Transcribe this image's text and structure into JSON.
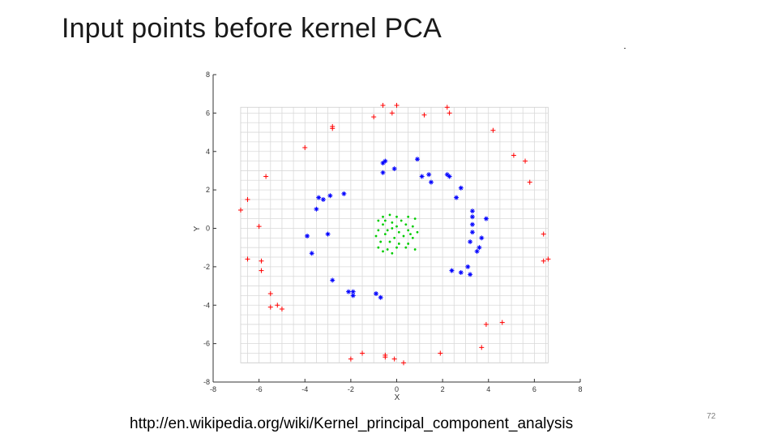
{
  "slide": {
    "title": "Input points before kernel PCA",
    "url": "http://en.wikipedia.org/wiki/Kernel_principal_component_analysis",
    "page_number": "72"
  },
  "chart_data": {
    "type": "scatter",
    "xlabel": "X",
    "ylabel": "Y",
    "xlim": [
      -8,
      8
    ],
    "ylim": [
      -8,
      8
    ],
    "xticks": [
      -8,
      -6,
      -4,
      -2,
      0,
      2,
      4,
      6,
      8
    ],
    "yticks": [
      -8,
      -6,
      -4,
      -2,
      0,
      2,
      4,
      6,
      8
    ],
    "xtick_labels": [
      "-8",
      "-6",
      "-4",
      "-2",
      "0",
      "2",
      "4",
      "6",
      "8"
    ],
    "ytick_labels": [
      "-8",
      "-6",
      "-4",
      "-2",
      "0",
      "2",
      "4",
      "6",
      "8"
    ],
    "grid": true,
    "grid_range": {
      "x": [
        -6.8,
        6.6
      ],
      "y": [
        -7.0,
        6.3
      ]
    },
    "series": [
      {
        "color": "#ff0000",
        "marker": "plus",
        "points": [
          [
            -0.6,
            6.4
          ],
          [
            0.0,
            6.4
          ],
          [
            -0.2,
            6.0
          ],
          [
            1.2,
            5.9
          ],
          [
            2.2,
            6.3
          ],
          [
            2.3,
            6.0
          ],
          [
            -1.0,
            5.8
          ],
          [
            -2.8,
            5.2
          ],
          [
            -2.8,
            5.3
          ],
          [
            4.2,
            5.1
          ],
          [
            -4.0,
            4.2
          ],
          [
            5.1,
            3.8
          ],
          [
            5.6,
            3.5
          ],
          [
            -5.7,
            2.7
          ],
          [
            5.8,
            2.4
          ],
          [
            -6.5,
            1.5
          ],
          [
            -6.8,
            0.95
          ],
          [
            -6.0,
            0.1
          ],
          [
            6.4,
            -0.3
          ],
          [
            -6.5,
            -1.6
          ],
          [
            -5.9,
            -1.7
          ],
          [
            6.4,
            -1.7
          ],
          [
            6.6,
            -1.6
          ],
          [
            -5.9,
            -2.2
          ],
          [
            -5.5,
            -3.4
          ],
          [
            -5.5,
            -4.1
          ],
          [
            -5.2,
            -4.0
          ],
          [
            -5.0,
            -4.2
          ],
          [
            3.9,
            -5.0
          ],
          [
            4.6,
            -4.9
          ],
          [
            3.7,
            -6.2
          ],
          [
            -1.5,
            -6.5
          ],
          [
            -0.5,
            -6.6
          ],
          [
            -0.5,
            -6.7
          ],
          [
            -2.0,
            -6.8
          ],
          [
            -0.1,
            -6.8
          ],
          [
            0.3,
            -7.0
          ],
          [
            1.9,
            -6.5
          ]
        ]
      },
      {
        "color": "#0000ff",
        "marker": "star",
        "points": [
          [
            0.9,
            3.6
          ],
          [
            -0.6,
            3.4
          ],
          [
            -0.5,
            3.5
          ],
          [
            -0.1,
            3.1
          ],
          [
            -0.6,
            2.9
          ],
          [
            1.1,
            2.7
          ],
          [
            1.4,
            2.8
          ],
          [
            1.5,
            2.4
          ],
          [
            2.2,
            2.8
          ],
          [
            2.3,
            2.7
          ],
          [
            2.8,
            2.1
          ],
          [
            2.6,
            1.6
          ],
          [
            -2.3,
            1.8
          ],
          [
            -2.9,
            1.7
          ],
          [
            -3.4,
            1.6
          ],
          [
            -3.2,
            1.5
          ],
          [
            -3.5,
            1.0
          ],
          [
            3.3,
            0.9
          ],
          [
            3.3,
            0.6
          ],
          [
            3.9,
            0.5
          ],
          [
            3.3,
            0.2
          ],
          [
            3.3,
            -0.2
          ],
          [
            -3.0,
            -0.3
          ],
          [
            -3.9,
            -0.4
          ],
          [
            3.7,
            -0.5
          ],
          [
            3.2,
            -0.7
          ],
          [
            3.6,
            -1.0
          ],
          [
            3.5,
            -1.2
          ],
          [
            -3.7,
            -1.3
          ],
          [
            3.1,
            -2.0
          ],
          [
            2.4,
            -2.2
          ],
          [
            2.8,
            -2.3
          ],
          [
            3.2,
            -2.4
          ],
          [
            -2.8,
            -2.7
          ],
          [
            -2.1,
            -3.3
          ],
          [
            -1.9,
            -3.3
          ],
          [
            -1.9,
            -3.5
          ],
          [
            -0.9,
            -3.4
          ],
          [
            -0.7,
            -3.6
          ]
        ]
      },
      {
        "color": "#00cc00",
        "marker": "dot",
        "points": [
          [
            -0.6,
            0.6
          ],
          [
            -0.3,
            0.7
          ],
          [
            0.0,
            0.6
          ],
          [
            0.5,
            0.6
          ],
          [
            0.8,
            0.5
          ],
          [
            -0.8,
            0.4
          ],
          [
            -0.5,
            0.4
          ],
          [
            -0.2,
            0.3
          ],
          [
            0.2,
            0.4
          ],
          [
            -0.6,
            0.2
          ],
          [
            0.0,
            0.1
          ],
          [
            0.4,
            0.2
          ],
          [
            0.7,
            0.1
          ],
          [
            -0.8,
            -0.1
          ],
          [
            -0.4,
            -0.1
          ],
          [
            0.1,
            -0.2
          ],
          [
            0.5,
            -0.1
          ],
          [
            0.9,
            -0.2
          ],
          [
            -0.9,
            -0.4
          ],
          [
            -0.5,
            -0.3
          ],
          [
            -0.1,
            -0.5
          ],
          [
            0.3,
            -0.4
          ],
          [
            0.7,
            -0.5
          ],
          [
            -0.7,
            -0.7
          ],
          [
            -0.3,
            -0.7
          ],
          [
            0.1,
            -0.8
          ],
          [
            0.5,
            -0.8
          ],
          [
            -0.8,
            -1.0
          ],
          [
            -0.4,
            -1.1
          ],
          [
            0.0,
            -1.0
          ],
          [
            0.4,
            -1.0
          ],
          [
            0.8,
            -1.1
          ],
          [
            -0.6,
            -1.2
          ],
          [
            -0.2,
            -1.3
          ],
          [
            0.6,
            -0.3
          ],
          [
            -0.2,
            0.0
          ]
        ]
      }
    ]
  }
}
